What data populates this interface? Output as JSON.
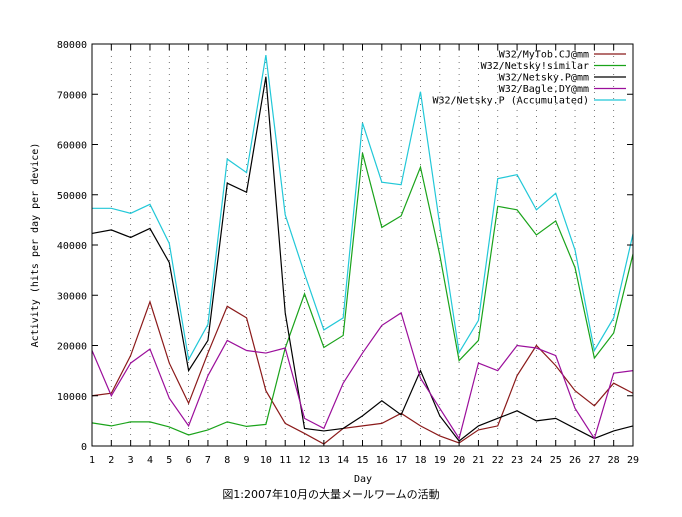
{
  "chart_data": {
    "type": "line",
    "xlabel": "Day",
    "ylabel": "Activity (hits per day per device)",
    "caption": "図1:2007年10月の大量メールワームの活動",
    "x": [
      1,
      2,
      3,
      4,
      5,
      6,
      7,
      8,
      9,
      10,
      11,
      12,
      13,
      14,
      15,
      16,
      17,
      18,
      19,
      20,
      21,
      22,
      23,
      24,
      25,
      26,
      27,
      28,
      29
    ],
    "xlim": [
      1,
      29
    ],
    "ylim": [
      0,
      80000
    ],
    "yticks": [
      0,
      10000,
      20000,
      30000,
      40000,
      50000,
      60000,
      70000,
      80000
    ],
    "grid": "vertical dotted lines at each day",
    "legend_position": "top-right",
    "series": [
      {
        "name": "W32/MyTob.CJ@mm",
        "color": "#8b1a1a",
        "values": [
          10000,
          10500,
          18000,
          28700,
          16500,
          8500,
          18500,
          27800,
          25500,
          11000,
          4500,
          2500,
          400,
          3500,
          4000,
          4500,
          6500,
          4000,
          2000,
          600,
          3200,
          4000,
          14000,
          20000,
          16000,
          11000,
          8000,
          12500,
          10500
        ]
      },
      {
        "name": "W32/Netsky!similar",
        "color": "#1aa31a",
        "values": [
          4600,
          4000,
          4800,
          4800,
          3800,
          2200,
          3200,
          4800,
          3900,
          4300,
          19500,
          30300,
          19600,
          22000,
          58300,
          43500,
          45800,
          55500,
          38000,
          17000,
          21000,
          47700,
          47000,
          42000,
          44800,
          35500,
          17500,
          22500,
          38200
        ]
      },
      {
        "name": "W32/Netsky.P@mm",
        "color": "#000000",
        "values": [
          42300,
          43000,
          41500,
          43300,
          36500,
          15000,
          21000,
          52300,
          50500,
          73500,
          26500,
          3500,
          3000,
          3500,
          6000,
          9000,
          6200,
          15000,
          6000,
          1000,
          4000,
          5500,
          7000,
          5000,
          5500,
          3500,
          1500,
          3000,
          4000
        ]
      },
      {
        "name": "W32/Bagle.DY@mm",
        "color": "#9b0f9b",
        "values": [
          19000,
          10000,
          16500,
          19300,
          9500,
          4000,
          14000,
          21000,
          19000,
          18500,
          19500,
          5500,
          3500,
          12500,
          18500,
          24000,
          26500,
          13500,
          7500,
          1500,
          16500,
          15000,
          20000,
          19500,
          18000,
          7500,
          1500,
          14500,
          15000
        ]
      },
      {
        "name": "W32/Netsky.P (Accumulated)",
        "color": "#22c8d8",
        "values": [
          47300,
          47300,
          46300,
          48100,
          40300,
          17200,
          24200,
          57100,
          54400,
          77800,
          46000,
          34300,
          23100,
          25500,
          64300,
          52500,
          52000,
          70500,
          44000,
          18600,
          25000,
          53200,
          54000,
          47000,
          50300,
          39000,
          19000,
          25500,
          42200
        ]
      }
    ]
  }
}
